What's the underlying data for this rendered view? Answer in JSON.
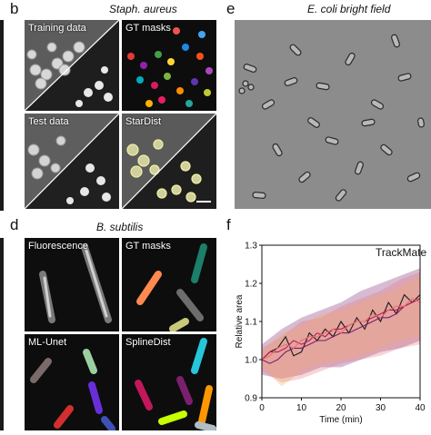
{
  "panels": {
    "b": {
      "letter": "b",
      "title": "Staph. aureus",
      "tiles": [
        {
          "label": "Training data"
        },
        {
          "label": "GT masks"
        },
        {
          "label": "Test data"
        },
        {
          "label": "StarDist"
        }
      ]
    },
    "e": {
      "letter": "e",
      "title": "E. coli bright field"
    },
    "d": {
      "letter": "d",
      "title": "B. subtilis",
      "tiles": [
        {
          "label": "Fluorescence"
        },
        {
          "label": "GT masks"
        },
        {
          "label": "ML-Unet"
        },
        {
          "label": "SplineDist"
        }
      ]
    },
    "f": {
      "letter": "f",
      "title": "TrackMate"
    }
  },
  "colors": {
    "background": "#ffffff",
    "micrograph_dark": "#0d0d0d",
    "brightfield": "#8e8e8e",
    "stardist_outline": "#f2f0a0",
    "series_colors": [
      "#1a1a1a",
      "#7b1f6e",
      "#c2185b",
      "#e57373"
    ]
  },
  "chart_data": {
    "type": "line",
    "title": "TrackMate",
    "xlabel": "Time (min)",
    "ylabel": "Relative area",
    "xlim": [
      0,
      40
    ],
    "ylim": [
      0.9,
      1.3
    ],
    "xticks": [
      0,
      10,
      20,
      30,
      40
    ],
    "yticks": [
      0.9,
      1.0,
      1.1,
      1.2,
      1.3
    ],
    "series": [
      {
        "color": "#1a1a1a",
        "x": [
          0,
          2,
          4,
          6,
          8,
          10,
          12,
          14,
          16,
          18,
          20,
          22,
          24,
          26,
          28,
          30,
          32,
          34,
          36,
          38,
          40
        ],
        "y": [
          1.0,
          1.02,
          1.03,
          1.06,
          1.01,
          1.02,
          1.07,
          1.05,
          1.08,
          1.06,
          1.1,
          1.07,
          1.11,
          1.08,
          1.13,
          1.1,
          1.15,
          1.12,
          1.17,
          1.15,
          1.17
        ]
      },
      {
        "color": "#7b1f6e",
        "x": [
          0,
          2,
          4,
          6,
          8,
          10,
          12,
          14,
          16,
          18,
          20,
          22,
          24,
          26,
          28,
          30,
          32,
          34,
          36,
          38,
          40
        ],
        "y": [
          1.0,
          0.99,
          1.0,
          1.02,
          1.03,
          1.03,
          1.04,
          1.05,
          1.05,
          1.06,
          1.07,
          1.07,
          1.08,
          1.09,
          1.1,
          1.11,
          1.11,
          1.12,
          1.14,
          1.15,
          1.16
        ]
      },
      {
        "color": "#c2185b",
        "x": [
          0,
          2,
          4,
          6,
          8,
          10,
          12,
          14,
          16,
          18,
          20,
          22,
          24,
          26,
          28,
          30,
          32,
          34,
          36,
          38,
          40
        ],
        "y": [
          1.0,
          1.02,
          1.02,
          1.03,
          1.05,
          1.04,
          1.05,
          1.07,
          1.06,
          1.08,
          1.08,
          1.09,
          1.1,
          1.1,
          1.11,
          1.12,
          1.13,
          1.13,
          1.14,
          1.15,
          1.16
        ]
      },
      {
        "color": "#e57373",
        "x": [
          0,
          2,
          4,
          6,
          8,
          10,
          12,
          14,
          16,
          18,
          20,
          22,
          24,
          26,
          28,
          30,
          32,
          34,
          36,
          38,
          40
        ],
        "y": [
          1.0,
          1.01,
          1.03,
          1.04,
          1.03,
          1.05,
          1.06,
          1.06,
          1.07,
          1.08,
          1.07,
          1.09,
          1.1,
          1.1,
          1.12,
          1.11,
          1.13,
          1.14,
          1.14,
          1.16,
          1.15
        ]
      }
    ],
    "bands": [
      {
        "color": "#7b1f6e",
        "x": [
          0,
          5,
          10,
          15,
          20,
          25,
          30,
          35,
          40
        ],
        "lower": [
          0.96,
          0.95,
          0.96,
          0.98,
          0.98,
          1.0,
          1.02,
          1.03,
          1.05
        ],
        "upper": [
          1.04,
          1.08,
          1.11,
          1.13,
          1.15,
          1.18,
          1.2,
          1.22,
          1.24
        ]
      },
      {
        "color": "#e57373",
        "x": [
          0,
          5,
          10,
          15,
          20,
          25,
          30,
          35,
          40
        ],
        "lower": [
          0.97,
          0.94,
          0.95,
          0.97,
          0.99,
          1.0,
          1.01,
          1.03,
          1.04
        ],
        "upper": [
          1.03,
          1.06,
          1.1,
          1.11,
          1.14,
          1.16,
          1.18,
          1.21,
          1.23
        ]
      },
      {
        "color": "#f4a460",
        "x": [
          0,
          5,
          10,
          15,
          20,
          25,
          30,
          35,
          40
        ],
        "lower": [
          0.98,
          0.93,
          0.97,
          0.99,
          1.0,
          1.01,
          1.03,
          1.05,
          1.06
        ],
        "upper": [
          1.02,
          1.07,
          1.09,
          1.12,
          1.13,
          1.15,
          1.17,
          1.19,
          1.22
        ]
      }
    ]
  }
}
